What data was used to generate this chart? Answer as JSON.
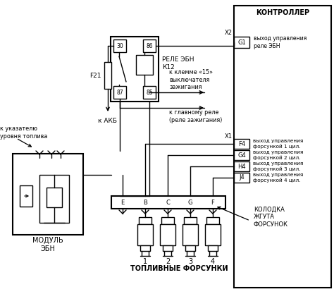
{
  "bg_color": "#ffffff",
  "line_color": "#000000",
  "text_color": "#000000",
  "labels": {
    "controller": "КОНТРОЛЛЕР",
    "relay_ebn": "РЕЛЕ ЭБН\nК12",
    "module_ebn": "МОДУЛЬ\nЭБН",
    "fuel_injectors": "ТОПЛИВНЫЕ ФОРСУНКИ",
    "kolodka": "КОЛОДКА\nЖГУТА\nФОРСУНОК",
    "k_akb": "к АКБ",
    "k_ukazatelyu": "к указателю\nуровня топлива",
    "k_klemme": "к клемме «15»\nвыключателя\nзажигания",
    "k_glavnomu": "к главному реле\n(реле зажигания)",
    "f21": "F21",
    "x1": "X1",
    "x2": "X2",
    "g1": "G1",
    "f4": "F4",
    "g4": "G4",
    "h4": "H4",
    "j4": "J4",
    "vyhod_g1": "выход управления\nреле ЭБН",
    "vyhod_f4": "выход управления\nфорсункой 1 цил.",
    "vyhod_g4": "выход управления\nфорсункой 2 цил.",
    "vyhod_h4": "выход управления\nфорсункой 3 цил.",
    "vyhod_j4": "выход управления\nфорсункой 4 цил.",
    "pin30": "30",
    "pin86": "86",
    "pin87": "87",
    "pin85": "85",
    "e": "E",
    "b": "B",
    "c": "C",
    "g": "G",
    "f": "F",
    "inj1": "1",
    "inj2": "2",
    "inj3": "3",
    "inj4": "4"
  }
}
